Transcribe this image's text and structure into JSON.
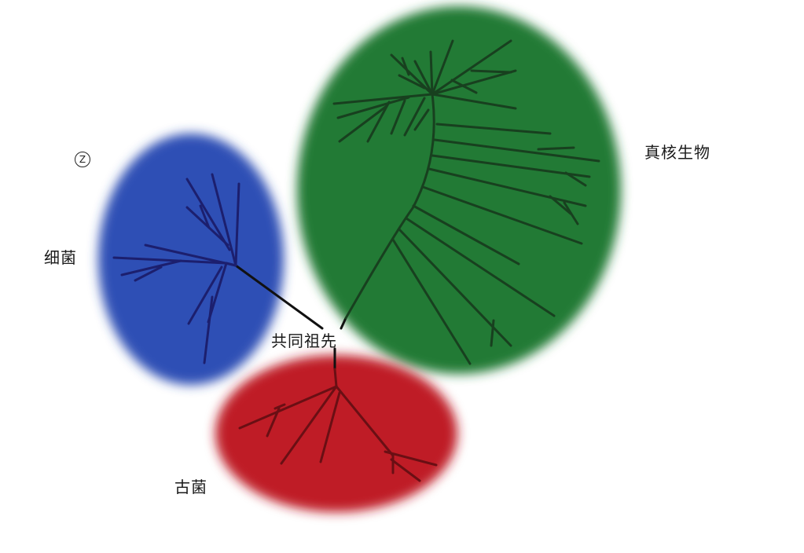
{
  "labels": {
    "bacteria": "细菌",
    "archaea": "古菌",
    "eukarya": "真核生物",
    "common_ancestor": "共同祖先"
  },
  "marker": "Z",
  "colors": {
    "bacteria_blob": "#2f4fb5",
    "archaea_blob": "#bf1f26",
    "eukarya_blob": "#237a34",
    "bacteria_branches": "#1c1f6e",
    "archaea_branches": "#6a0f14",
    "eukarya_branches": "#18401f",
    "root_line": "#111111"
  }
}
